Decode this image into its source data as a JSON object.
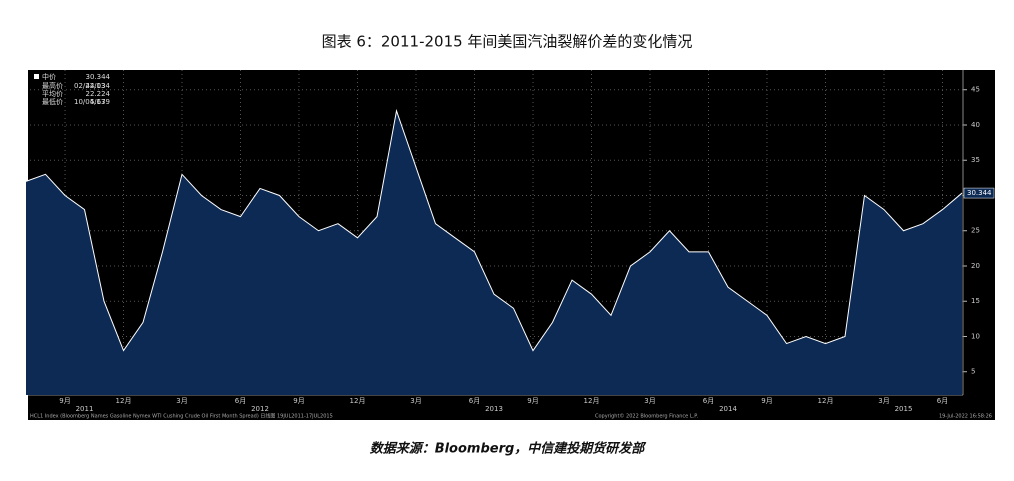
{
  "title": "图表 6：2011-2015 年间美国汽油裂解价差的变化情况",
  "chart_data": {
    "type": "area",
    "x": [
      "2011-07",
      "2011-08",
      "2011-09",
      "2011-10",
      "2011-11",
      "2011-12",
      "2012-01",
      "2012-02",
      "2012-03",
      "2012-04",
      "2012-05",
      "2012-06",
      "2012-07",
      "2012-08",
      "2012-09",
      "2012-10",
      "2012-11",
      "2012-12",
      "2013-01",
      "2013-02",
      "2013-03",
      "2013-04",
      "2013-05",
      "2013-06",
      "2013-07",
      "2013-08",
      "2013-09",
      "2013-10",
      "2013-11",
      "2013-12",
      "2014-01",
      "2014-02",
      "2014-03",
      "2014-04",
      "2014-05",
      "2014-06",
      "2014-07",
      "2014-08",
      "2014-09",
      "2014-10",
      "2014-11",
      "2014-12",
      "2015-01",
      "2015-02",
      "2015-03",
      "2015-04",
      "2015-05",
      "2015-06",
      "2015-07"
    ],
    "series": [
      {
        "name": "中价",
        "color": "#ffffff",
        "fill": "#0d2a55",
        "values": [
          32,
          33,
          30,
          28,
          15,
          8,
          12,
          22,
          33,
          30,
          28,
          27,
          31,
          30,
          27,
          25,
          26,
          24,
          27,
          42,
          34,
          26,
          24,
          22,
          16,
          14,
          8,
          12,
          18,
          16,
          13,
          20,
          22,
          25,
          22,
          22,
          17,
          15,
          13,
          9,
          10,
          9,
          10,
          30,
          28,
          25,
          26,
          28,
          30.344
        ]
      }
    ],
    "ylim": [
      1.7,
      47.8
    ],
    "yticks": [
      5,
      10,
      15,
      20,
      25,
      30,
      35,
      40,
      45
    ],
    "grid": true,
    "xticks": [
      {
        "value": "2011-09",
        "label": "9月"
      },
      {
        "value": "2011-12",
        "label": "12月"
      },
      {
        "value": "2012-03",
        "label": "3月"
      },
      {
        "value": "2012-06",
        "label": "6月"
      },
      {
        "value": "2012-09",
        "label": "9月"
      },
      {
        "value": "2012-12",
        "label": "12月"
      },
      {
        "value": "2013-03",
        "label": "3月"
      },
      {
        "value": "2013-06",
        "label": "6月"
      },
      {
        "value": "2013-09",
        "label": "9月"
      },
      {
        "value": "2013-12",
        "label": "12月"
      },
      {
        "value": "2014-03",
        "label": "3月"
      },
      {
        "value": "2014-06",
        "label": "6月"
      },
      {
        "value": "2014-09",
        "label": "9月"
      },
      {
        "value": "2014-12",
        "label": "12月"
      },
      {
        "value": "2015-03",
        "label": "3月"
      },
      {
        "value": "2015-06",
        "label": "6月"
      }
    ],
    "year_ticks": [
      {
        "value": "2011-10",
        "label": "2011"
      },
      {
        "value": "2012-07",
        "label": "2012"
      },
      {
        "value": "2013-07",
        "label": "2013"
      },
      {
        "value": "2014-07",
        "label": "2014"
      },
      {
        "value": "2015-04",
        "label": "2015"
      }
    ],
    "stats": [
      {
        "name": "最高价",
        "date": "02/22/13",
        "value": "44.034"
      },
      {
        "name": "平均价",
        "date": "",
        "value": "22.224"
      },
      {
        "name": "最低价",
        "date": "10/04/13",
        "value": "5.679"
      }
    ],
    "footer_left": "HCL1 Index (Bloomberg Names Gasoline Nymex WTI Cushing Crude Oil First Month Spread) 日线图 19JUL2011-17JUL2015",
    "footer_mid": "Copyright© 2022 Bloomberg Finance L.P.",
    "footer_right": "19-Jul-2022 16:58:26"
  },
  "source": "数据来源：Bloomberg，中信建投期货研发部"
}
